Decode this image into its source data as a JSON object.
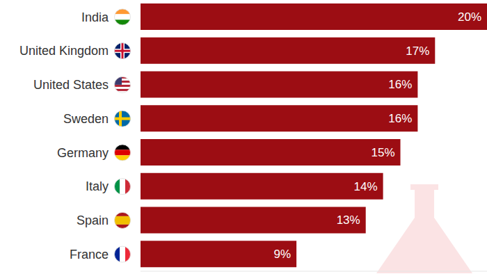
{
  "chart_data": {
    "type": "bar",
    "orientation": "horizontal",
    "categories": [
      "India",
      "United Kingdom",
      "United States",
      "Sweden",
      "Germany",
      "Italy",
      "Spain",
      "France"
    ],
    "values": [
      20,
      17,
      16,
      16,
      15,
      14,
      13,
      9
    ],
    "value_labels": [
      "20%",
      "17%",
      "16%",
      "16%",
      "15%",
      "14%",
      "13%",
      "9%"
    ],
    "data_labels": true,
    "color": "#9c0d13",
    "xlim": [
      0,
      20
    ],
    "tick_labels": "y",
    "grid": false
  }
}
